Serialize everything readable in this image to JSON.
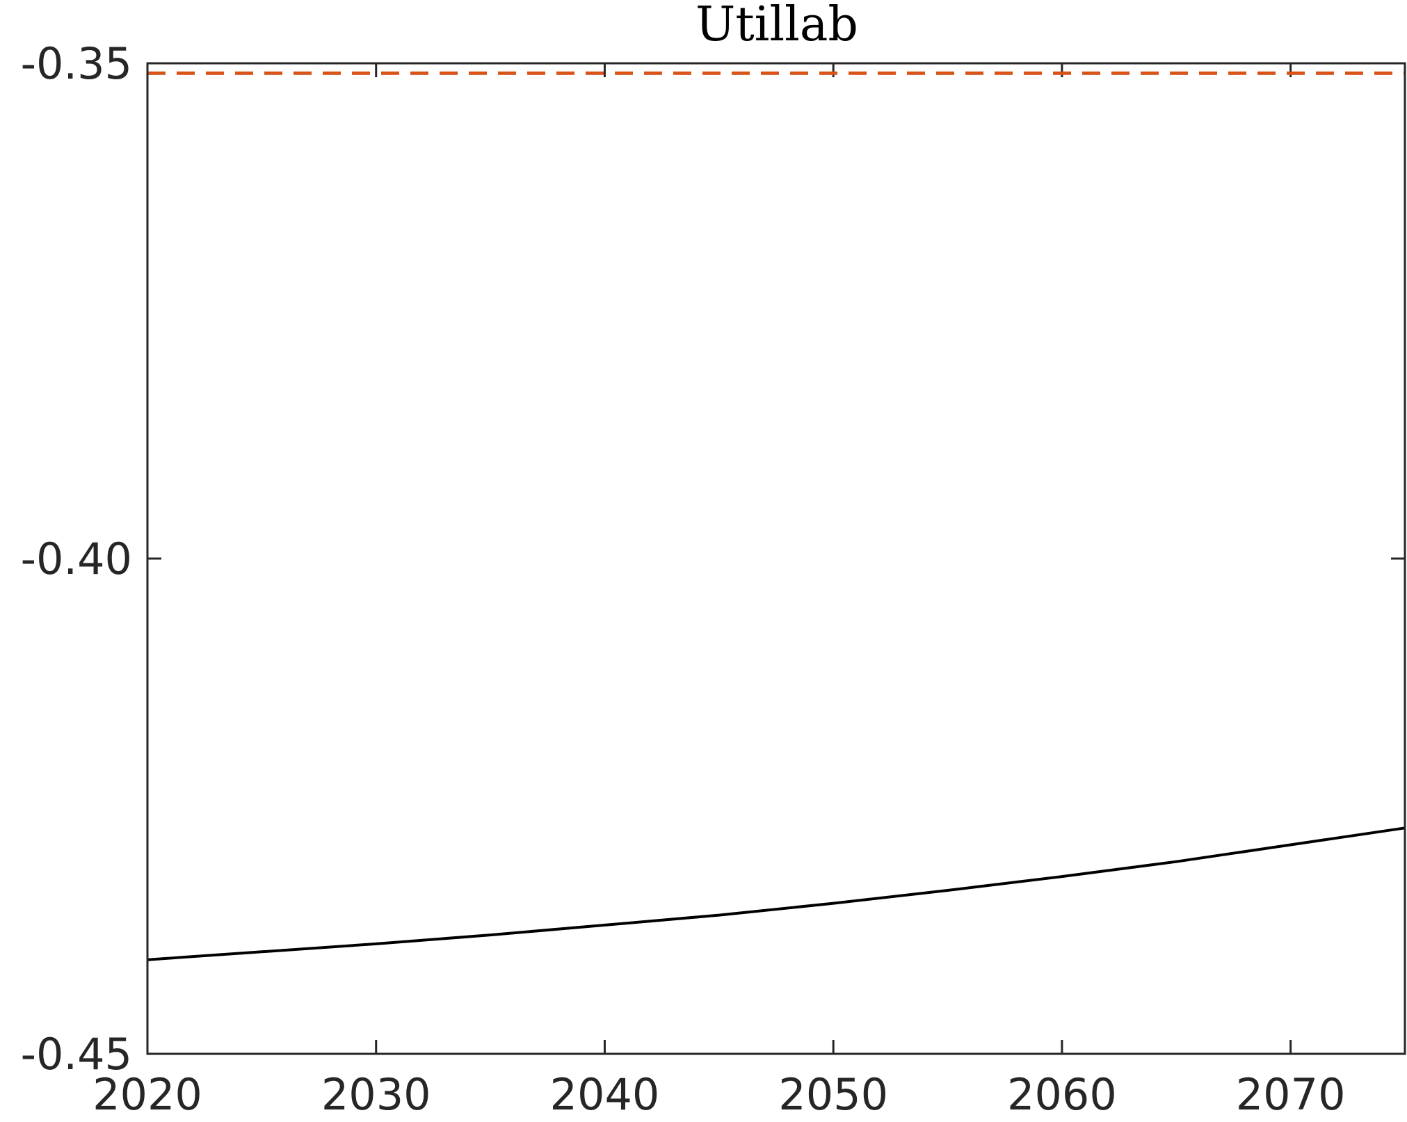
{
  "chart_data": {
    "type": "line",
    "title": "Utillab",
    "xlabel": "",
    "ylabel": "",
    "xlim": [
      2020,
      2075
    ],
    "ylim": [
      -0.45,
      -0.35
    ],
    "xticks": [
      2020,
      2030,
      2040,
      2050,
      2060,
      2070
    ],
    "xtick_labels": [
      "2020",
      "2030",
      "2040",
      "2050",
      "2060",
      "2070"
    ],
    "yticks": [
      -0.35,
      -0.4,
      -0.45
    ],
    "ytick_labels": [
      "-0.35",
      "-0.40",
      "-0.45"
    ],
    "grid": false,
    "legend": "none",
    "series": [
      {
        "style": "solid",
        "color": "#000000",
        "x": [
          2020,
          2025,
          2030,
          2035,
          2040,
          2045,
          2050,
          2055,
          2060,
          2065,
          2070,
          2075
        ],
        "y": [
          -0.4405,
          -0.4397,
          -0.4389,
          -0.438,
          -0.437,
          -0.436,
          -0.4348,
          -0.4335,
          -0.4321,
          -0.4306,
          -0.4289,
          -0.4272
        ]
      },
      {
        "style": "dashed",
        "color": "#D95319",
        "x": [
          2020,
          2075
        ],
        "y": [
          -0.351,
          -0.351
        ]
      }
    ]
  }
}
